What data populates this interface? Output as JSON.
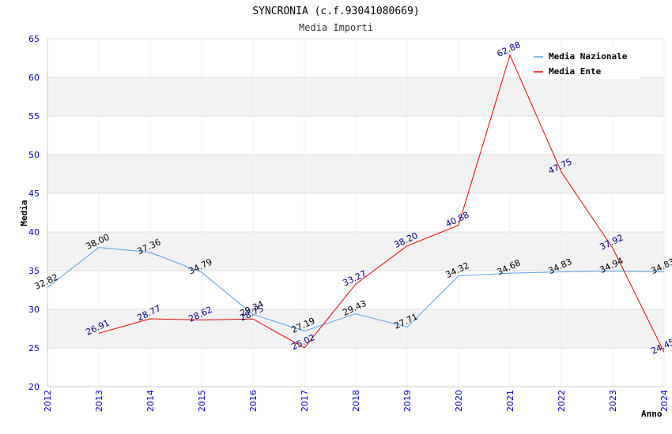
{
  "chart_data": {
    "type": "line",
    "title": "SYNCRONIA (c.f.93041080669)",
    "subtitle": "Media Importi",
    "xlabel": "Anno",
    "ylabel": "Media",
    "ylim": [
      20,
      65
    ],
    "y_ticks": [
      20,
      25,
      30,
      35,
      40,
      45,
      50,
      55,
      60,
      65
    ],
    "categories": [
      "2012",
      "2013",
      "2014",
      "2015",
      "2016",
      "2017",
      "2018",
      "2019",
      "2020",
      "2021",
      "2022",
      "2023",
      "2024"
    ],
    "series": [
      {
        "name": "Media Nazionale",
        "color": "#5aa0e6",
        "values": [
          32.82,
          38.0,
          37.36,
          34.79,
          29.34,
          27.19,
          29.43,
          27.71,
          34.32,
          34.68,
          34.83,
          34.94,
          34.83
        ],
        "labels": [
          "32.82",
          "38.00",
          "37.36",
          "34.79",
          "29.34",
          "27.19",
          "29.43",
          "27.71",
          "34.32",
          "34.68",
          "34.83",
          "34.94",
          "34.83"
        ]
      },
      {
        "name": "Media Ente",
        "color": "#e60000",
        "values": [
          null,
          26.91,
          28.77,
          28.62,
          28.75,
          25.02,
          33.27,
          38.2,
          40.88,
          62.88,
          47.75,
          37.92,
          24.45
        ],
        "labels": [
          null,
          "26.91",
          "28.77",
          "28.62",
          "28.75",
          "25.02",
          "33.27",
          "38.20",
          "40.88",
          "62.88",
          "47.75",
          "37.92",
          "24.45"
        ]
      }
    ],
    "legend_position": "top-right",
    "grid": true
  }
}
